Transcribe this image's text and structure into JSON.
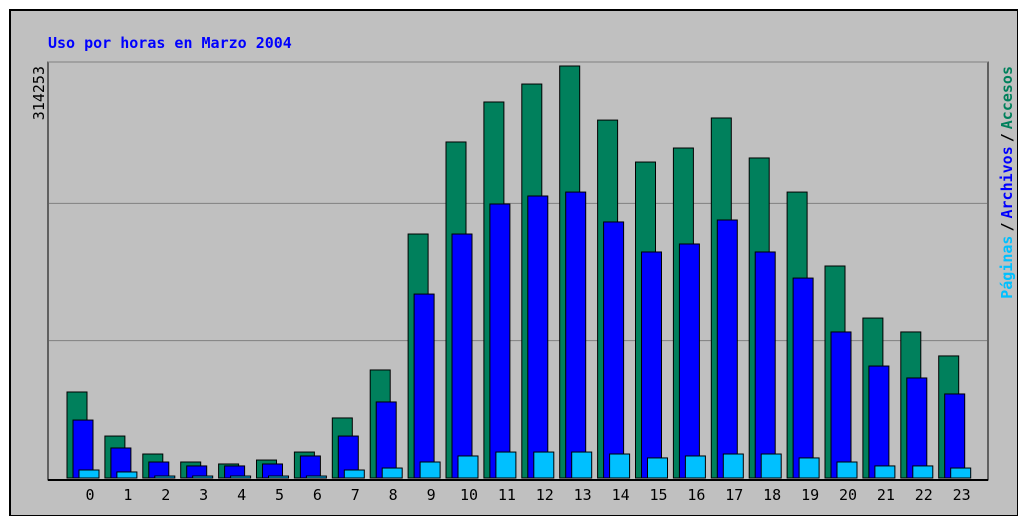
{
  "chart_data": {
    "type": "bar",
    "title": "Uso por horas en Marzo 2004",
    "categories": [
      "0",
      "1",
      "2",
      "3",
      "4",
      "5",
      "6",
      "7",
      "8",
      "9",
      "10",
      "11",
      "12",
      "13",
      "14",
      "15",
      "16",
      "17",
      "18",
      "19",
      "20",
      "21",
      "22",
      "23"
    ],
    "series": [
      {
        "name": "Accesos",
        "color": "#00805c",
        "values": [
          65600,
          32000,
          18300,
          12200,
          10700,
          13700,
          19800,
          45800,
          82400,
          186100,
          256300,
          286800,
          300500,
          314253,
          273000,
          241000,
          251700,
          274600,
          244100,
          218100,
          161700,
          122000,
          111400,
          93100
        ]
      },
      {
        "name": "Archivos",
        "color": "#0000ff",
        "values": [
          44200,
          22900,
          12200,
          9200,
          9200,
          10700,
          16800,
          32000,
          58000,
          140300,
          186100,
          209000,
          215100,
          218100,
          195300,
          172400,
          178500,
          196800,
          172400,
          152500,
          111400,
          85400,
          76300,
          64100
        ]
      },
      {
        "name": "Páginas",
        "color": "#00c0ff",
        "values": [
          6100,
          4600,
          1500,
          1500,
          1500,
          1500,
          1500,
          6100,
          7600,
          12200,
          16800,
          19800,
          19800,
          19800,
          18300,
          15300,
          16800,
          18300,
          18300,
          15300,
          12200,
          9200,
          9200,
          7600
        ]
      }
    ],
    "legend_separator": "/",
    "ylim": [
      0,
      314253
    ],
    "yticks": [
      314253
    ]
  }
}
